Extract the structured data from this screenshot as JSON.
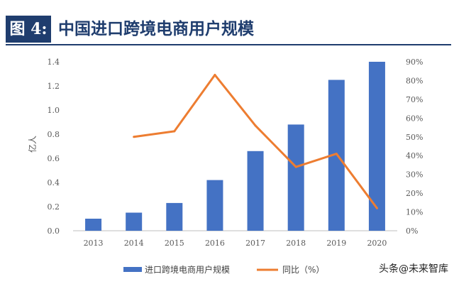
{
  "figure": {
    "tag": "图 4:",
    "title": "中国进口跨境电商用户规模"
  },
  "watermark": "头条@未来智库",
  "colors": {
    "bar": "#4472c4",
    "line": "#ed7d31",
    "header": "#1f3d6e"
  },
  "chart_data": {
    "type": "bar",
    "title": "",
    "ylabel": "亿人",
    "categories": [
      "2013",
      "2014",
      "2015",
      "2016",
      "2017",
      "2018",
      "2019",
      "2020"
    ],
    "ylim": [
      0,
      1.4
    ],
    "y_ticks": [
      "0.0",
      "0.2",
      "0.4",
      "0.6",
      "0.8",
      "1.0",
      "1.2",
      "1.4"
    ],
    "y2lim": [
      0,
      90
    ],
    "y2_ticks": [
      "0%",
      "10%",
      "20%",
      "30%",
      "40%",
      "50%",
      "60%",
      "70%",
      "80%",
      "90%"
    ],
    "grid": false,
    "legend_position": "bottom",
    "series": [
      {
        "name": "进口跨境电商用户规模",
        "type": "bar",
        "axis": "left",
        "values": [
          0.1,
          0.15,
          0.23,
          0.42,
          0.66,
          0.88,
          1.25,
          1.4
        ]
      },
      {
        "name": "同比（%）",
        "type": "line",
        "axis": "right",
        "values": [
          null,
          50,
          53,
          83,
          56,
          34,
          41,
          12
        ]
      }
    ]
  }
}
